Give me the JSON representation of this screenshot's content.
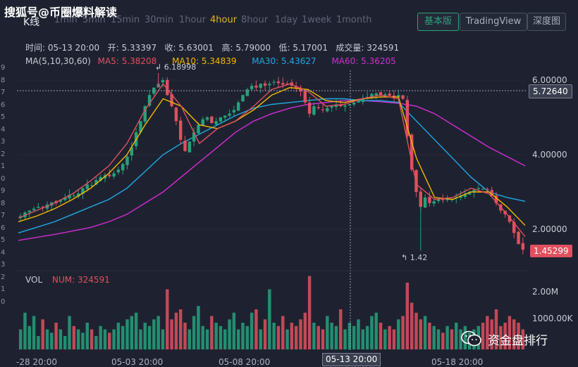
{
  "watermark_top": "搜狐号@币圈爆料解读",
  "chart_title": "K线",
  "timeframes": [
    "1min",
    "5min",
    "15min",
    "30min",
    "1hour",
    "4hour",
    "8hour",
    "1day",
    "1week",
    "1month"
  ],
  "active_timeframe": "4hour",
  "view_buttons": {
    "basic": "基本版",
    "tradingview": "TradingView",
    "depth": "深度图"
  },
  "ohlc": {
    "time_label": "时间:",
    "time": "05-13 20:00",
    "open_label": "开:",
    "open": "5.33397",
    "close_label": "收:",
    "close": "5.63001",
    "high_label": "高:",
    "high": "5.79000",
    "low_label": "低:",
    "low": "5.17001",
    "volume_label": "成交量:",
    "volume": "324591"
  },
  "ma": {
    "header": "MA(5,10,30,60)",
    "ma5": "MA5: 5.38208",
    "ma10": "MA10: 5.34839",
    "ma30": "MA30: 5.43627",
    "ma60": "MA60: 5.36205"
  },
  "price_axis": [
    "6.00000",
    "4.00000",
    "2.00000"
  ],
  "crosshair_price": "5.72640",
  "last_price": "1.45299",
  "high_marker": "6.18998",
  "low_marker": "1.42",
  "volume_section": {
    "label": "VOL",
    "num": "NUM: 324591"
  },
  "volume_axis": [
    "2.00M",
    "1000.00K"
  ],
  "time_axis": [
    "-28 20:00",
    "05-03 20:00",
    "05-08 20:00",
    "05-13 20:00",
    "05-18 20:00"
  ],
  "crosshair_time": "05-13 20:00",
  "left_edge_digits": [
    "9",
    "8",
    "7",
    "6",
    "5",
    "4",
    "3",
    "2",
    "1",
    "0",
    "9",
    "8",
    "7",
    "6",
    "5",
    "4",
    "3",
    "2",
    "1",
    "0"
  ],
  "brand": {
    "logo_icon": "wechat-icon",
    "name": "资金盘排行"
  },
  "colors": {
    "up": "#26a17b",
    "down": "#e0505e",
    "ma5": "#e0505e",
    "ma10": "#f5b700",
    "ma30": "#1fa9e6",
    "ma60": "#d42bd4",
    "accent": "#e8b524"
  },
  "chart_data": {
    "type": "candlestick",
    "timeframe": "4hour",
    "candles_close": [
      2.35,
      2.45,
      2.5,
      2.55,
      2.6,
      2.58,
      2.66,
      2.72,
      2.7,
      2.78,
      2.85,
      2.92,
      2.9,
      2.96,
      3.1,
      3.2,
      3.18,
      3.32,
      3.4,
      3.45,
      3.42,
      3.5,
      3.6,
      3.75,
      3.95,
      4.2,
      4.6,
      4.9,
      5.3,
      5.6,
      5.8,
      5.9,
      6.0,
      5.6,
      5.3,
      4.9,
      4.4,
      4.1,
      4.35,
      4.6,
      4.8,
      4.95,
      5.0,
      4.85,
      4.9,
      5.0,
      5.05,
      5.1,
      5.2,
      5.4,
      5.6,
      5.75,
      5.85,
      5.8,
      5.9,
      5.85,
      5.9,
      5.95,
      5.92,
      5.88,
      5.9,
      5.85,
      5.8,
      5.7,
      5.4,
      5.1,
      5.3,
      5.25,
      5.2,
      5.25,
      5.3,
      5.35,
      5.3,
      5.32,
      5.35,
      5.4,
      5.45,
      5.5,
      5.55,
      5.63,
      5.65,
      5.6,
      5.62,
      5.58,
      5.55,
      5.6,
      5.5,
      4.5,
      3.6,
      3.0,
      2.6,
      2.85,
      2.7,
      2.75,
      2.8,
      2.78,
      2.82,
      2.8,
      2.85,
      2.9,
      2.95,
      3.0,
      3.05,
      3.1,
      3.08,
      3.05,
      2.9,
      2.7,
      2.5,
      2.4,
      2.2,
      1.9,
      1.6,
      1.45
    ],
    "ma5_path": [
      2.3,
      2.5,
      2.7,
      2.95,
      3.3,
      3.7,
      4.3,
      5.2,
      5.9,
      5.3,
      4.3,
      4.7,
      4.9,
      5.3,
      5.75,
      5.9,
      5.7,
      5.3,
      5.35,
      5.5,
      5.6,
      5.5,
      3.2,
      2.8,
      2.85,
      3.1,
      2.95,
      2.4,
      1.8
    ],
    "ma10_path": [
      2.2,
      2.35,
      2.55,
      2.8,
      3.1,
      3.5,
      4.0,
      4.8,
      5.5,
      5.3,
      4.8,
      4.7,
      4.9,
      5.2,
      5.6,
      5.8,
      5.75,
      5.45,
      5.4,
      5.5,
      5.55,
      5.55,
      3.9,
      2.85,
      2.8,
      3.0,
      3.0,
      2.6,
      2.1
    ],
    "ma30_path": [
      1.9,
      2.05,
      2.2,
      2.4,
      2.6,
      2.8,
      3.1,
      3.55,
      4.0,
      4.3,
      4.55,
      4.8,
      5.05,
      5.25,
      5.35,
      5.4,
      5.45,
      5.5,
      5.5,
      5.45,
      5.45,
      5.4,
      4.9,
      4.4,
      3.9,
      3.4,
      3.0,
      2.85,
      2.75
    ],
    "ma60_path": [
      1.7,
      1.78,
      1.86,
      1.95,
      2.05,
      2.2,
      2.4,
      2.7,
      3.0,
      3.4,
      3.8,
      4.2,
      4.6,
      4.9,
      5.1,
      5.25,
      5.35,
      5.4,
      5.45,
      5.45,
      5.42,
      5.38,
      5.3,
      5.1,
      4.8,
      4.5,
      4.2,
      3.95,
      3.7
    ],
    "volume_profile": [
      0.3,
      0.55,
      0.35,
      0.5,
      0.2,
      0.45,
      0.3,
      0.25,
      0.4,
      0.3,
      0.2,
      0.5,
      0.35,
      0.3,
      0.25,
      0.4,
      0.3,
      0.2,
      0.35,
      0.3,
      0.25,
      0.3,
      0.4,
      0.35,
      0.45,
      0.5,
      0.55,
      0.3,
      0.4,
      0.35,
      0.45,
      0.5,
      0.3,
      0.9,
      0.45,
      0.55,
      0.6,
      0.4,
      0.3,
      0.5,
      0.65,
      0.35,
      0.3,
      0.5,
      0.4,
      0.35,
      0.3,
      0.45,
      0.55,
      0.3,
      0.4,
      0.35,
      0.55,
      0.6,
      0.3,
      0.45,
      0.9,
      0.4,
      0.35,
      0.5,
      0.3,
      0.4,
      0.35,
      0.45,
      0.55,
      1.1,
      0.4,
      0.35,
      0.3,
      0.5,
      0.4,
      0.35,
      0.6,
      0.3,
      0.4,
      0.35,
      0.45,
      0.3,
      0.35,
      0.5,
      0.55,
      0.4,
      0.3,
      0.35,
      0.3,
      0.45,
      0.5,
      1.0,
      0.7,
      0.55,
      0.45,
      0.5,
      0.4,
      0.35,
      0.3,
      0.25,
      0.35,
      0.3,
      0.4,
      0.3,
      0.35,
      0.25,
      0.3,
      0.35,
      0.4,
      0.5,
      0.45,
      0.6,
      0.35,
      0.4,
      0.5,
      0.45,
      0.4,
      0.3
    ],
    "ylim": [
      1.0,
      6.5
    ]
  }
}
